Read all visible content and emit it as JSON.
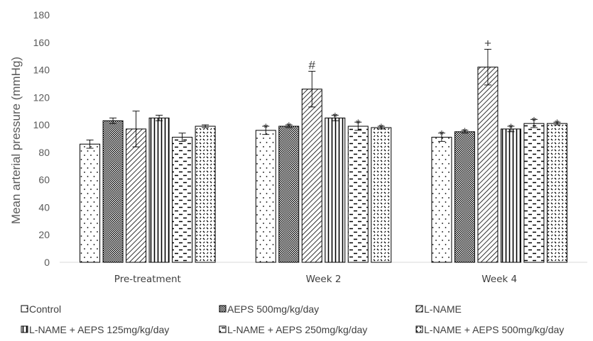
{
  "chart_data": {
    "type": "bar",
    "ylabel": "Mean arterial pressure (mmHg)",
    "ylim": [
      0,
      180
    ],
    "yticks": [
      0,
      20,
      40,
      60,
      80,
      100,
      120,
      140,
      160,
      180
    ],
    "categories": [
      "Pre-treatment",
      "Week 2",
      "Week 4"
    ],
    "series": [
      {
        "name": "Control",
        "pattern": "sparse-dots",
        "values": [
          86,
          96,
          91
        ],
        "errors": [
          3,
          3,
          3
        ]
      },
      {
        "name": "AEPS 500mg/kg/day",
        "pattern": "dense-checker",
        "values": [
          103,
          99,
          95
        ],
        "errors": [
          2,
          1,
          1
        ]
      },
      {
        "name": "L-NAME",
        "pattern": "diagonal-lines",
        "values": [
          97,
          126,
          142
        ],
        "errors": [
          13,
          13,
          13
        ]
      },
      {
        "name": "L-NAME + AEPS 125mg/kg/day",
        "pattern": "vertical-lines",
        "values": [
          105,
          105,
          97
        ],
        "errors": [
          2,
          2,
          2
        ]
      },
      {
        "name": "L-NAME + AEPS 250mg/kg/day",
        "pattern": "dash-rows",
        "values": [
          91,
          99,
          101
        ],
        "errors": [
          3,
          3,
          3
        ]
      },
      {
        "name": "L-NAME + AEPS 500mg/kg/day",
        "pattern": "confetti",
        "values": [
          99,
          98,
          101
        ],
        "errors": [
          1,
          1,
          1
        ]
      }
    ],
    "annotations": [
      {
        "category": 1,
        "series": 0,
        "text": "*"
      },
      {
        "category": 1,
        "series": 1,
        "text": "*"
      },
      {
        "category": 1,
        "series": 2,
        "text": "#"
      },
      {
        "category": 1,
        "series": 3,
        "text": "*"
      },
      {
        "category": 1,
        "series": 4,
        "text": "*"
      },
      {
        "category": 1,
        "series": 5,
        "text": "*"
      },
      {
        "category": 2,
        "series": 0,
        "text": "*"
      },
      {
        "category": 2,
        "series": 1,
        "text": "*"
      },
      {
        "category": 2,
        "series": 2,
        "text": "+"
      },
      {
        "category": 2,
        "series": 3,
        "text": "*"
      },
      {
        "category": 2,
        "series": 4,
        "text": "*"
      },
      {
        "category": 2,
        "series": 5,
        "text": "*"
      }
    ],
    "legend_position": "bottom",
    "grid": false,
    "colors": {
      "bar_stroke": "#000000",
      "bar_fill": "#ffffff",
      "axis": "#d9d9d9",
      "text": "#595959"
    }
  }
}
